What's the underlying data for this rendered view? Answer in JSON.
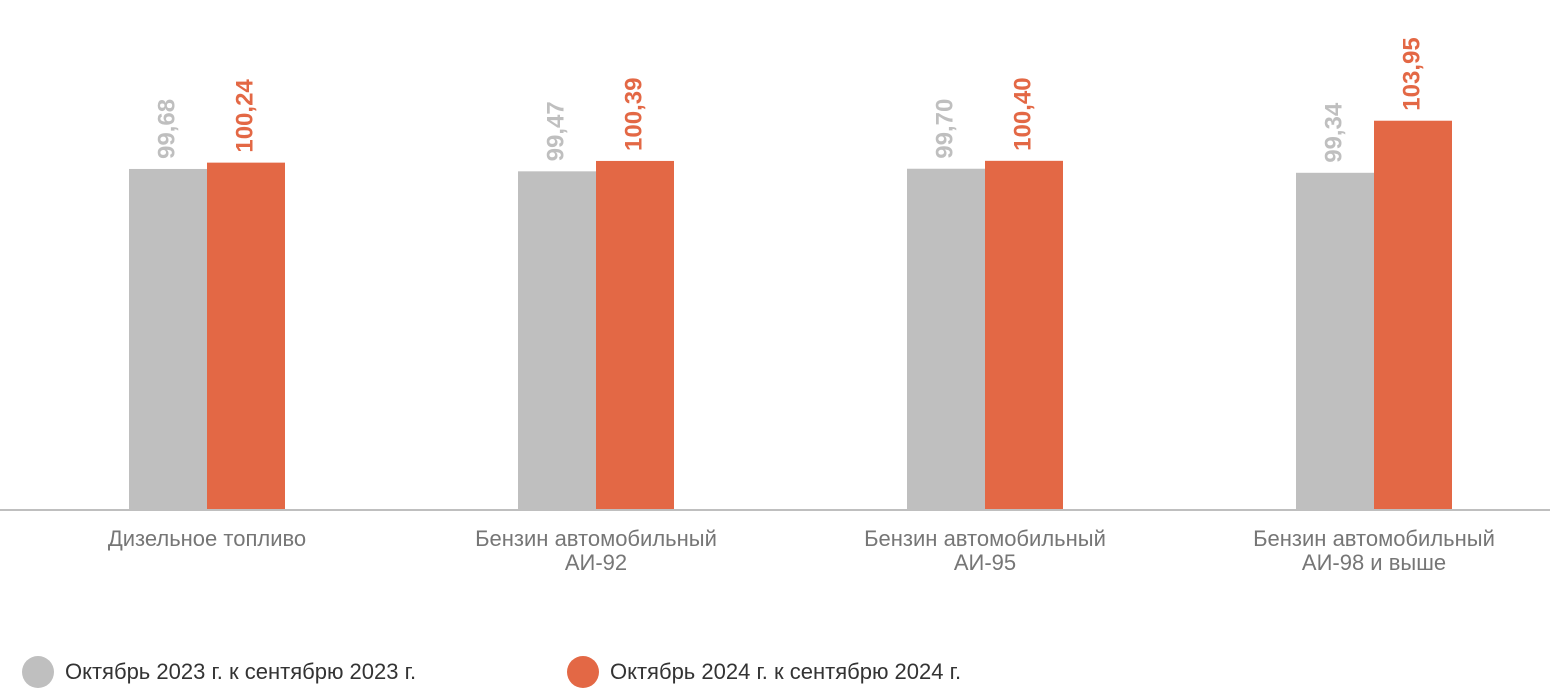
{
  "chart_data": {
    "type": "bar",
    "categories": [
      "Дизельное топливо",
      "Бензин автомобильный\nАИ-92",
      "Бензин автомобильный\nАИ-95",
      "Бензин автомобильный\nАИ-98 и выше"
    ],
    "series": [
      {
        "name": "Октябрь 2023 г. к сентябрю 2023 г.",
        "color": "#bfbfbf",
        "values": [
          99.68,
          99.47,
          99.7,
          99.34
        ],
        "value_labels": [
          "99,68",
          "99,47",
          "99,70",
          "99,34"
        ]
      },
      {
        "name": "Октябрь 2024 г. к сентябрю 2024 г.",
        "color": "#e36845",
        "values": [
          100.24,
          100.39,
          100.4,
          103.95
        ],
        "value_labels": [
          "100,24",
          "100,39",
          "100,40",
          "103,95"
        ]
      }
    ],
    "ylim": [
      69.5,
      110
    ],
    "legend": "bottom-left"
  }
}
